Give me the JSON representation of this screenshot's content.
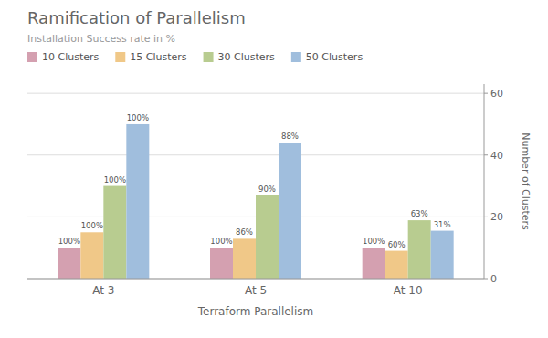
{
  "chart_data": {
    "type": "bar",
    "title": "Ramification of Parallelism",
    "subtitle": "Installation Success rate in %",
    "x_label": "Terraform Parallelism",
    "y_label": "Number of Clusters",
    "categories": [
      "At 3",
      "At 5",
      "At 10"
    ],
    "series": [
      {
        "name": "10 Clusters",
        "color": "#d4a0b0",
        "values": [
          10,
          10,
          10
        ],
        "success_rates": [
          100,
          100,
          100
        ],
        "success_rate_labels": [
          "100%",
          "100%",
          "100%"
        ]
      },
      {
        "name": "15 Clusters",
        "color": "#f0c888",
        "values": [
          15,
          12.9,
          9
        ],
        "success_rates": [
          100,
          86,
          60
        ],
        "success_rate_labels": [
          "100%",
          "86%",
          "60%"
        ]
      },
      {
        "name": "30 Clusters",
        "color": "#b8cc90",
        "values": [
          30,
          27,
          18.9
        ],
        "success_rates": [
          100,
          90,
          63
        ],
        "success_rate_labels": [
          "100%",
          "90%",
          "63%"
        ]
      },
      {
        "name": "50 Clusters",
        "color": "#a0bedd",
        "values": [
          50,
          44,
          15.5
        ],
        "success_rates": [
          100,
          88,
          31
        ],
        "success_rate_labels": [
          "100%",
          "88%",
          "31%"
        ]
      }
    ],
    "ylim": [
      0,
      63
    ],
    "yticks": [
      0,
      20,
      40,
      60
    ],
    "grid": true,
    "legend": "top"
  }
}
